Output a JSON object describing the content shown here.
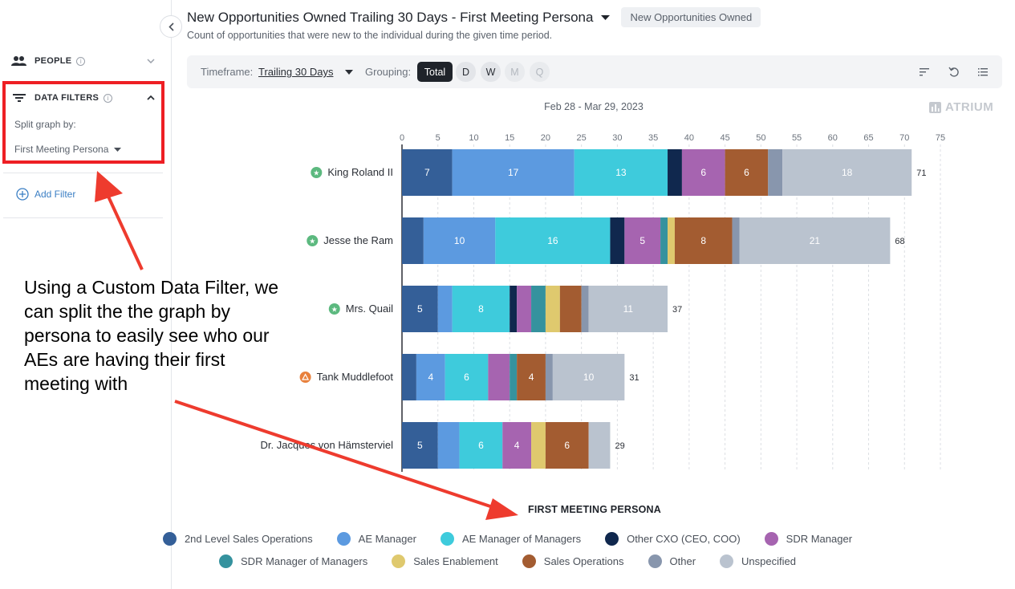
{
  "sidebar": {
    "people_label": "PEOPLE",
    "data_filters_label": "DATA FILTERS",
    "split_label": "Split graph by:",
    "split_value": "First Meeting Persona",
    "add_filter_label": "Add Filter"
  },
  "annotation": {
    "text": "Using a Custom Data Filter, we can split the the graph by persona to easily see who our AEs are having their first meeting with"
  },
  "header": {
    "title": "New Opportunities Owned Trailing 30 Days - First Meeting Persona",
    "badge": "New Opportunities Owned",
    "subtitle": "Count of opportunities that were new to the individual during the given time period."
  },
  "toolbar": {
    "timeframe_label": "Timeframe:",
    "timeframe_value": "Trailing 30 Days",
    "grouping_label": "Grouping:",
    "grouping_options": [
      {
        "label": "Total",
        "state": "selected"
      },
      {
        "label": "D",
        "state": "enabled"
      },
      {
        "label": "W",
        "state": "enabled"
      },
      {
        "label": "M",
        "state": "disabled"
      },
      {
        "label": "Q",
        "state": "disabled"
      }
    ],
    "icons": [
      "sort-icon",
      "reset-icon",
      "list-icon"
    ]
  },
  "brand": "ATRIUM",
  "colors": {
    "accent_dark": "#1f232a",
    "annotation_red": "#ee3b2e",
    "star_green": "#5cb97f",
    "warning_orange": "#e8803c"
  },
  "chart_data": {
    "type": "bar",
    "orientation": "horizontal",
    "stacked": true,
    "date_range": "Feb 28 - Mar 29, 2023",
    "xlim": [
      0,
      75
    ],
    "x_ticks": [
      0,
      5,
      10,
      15,
      20,
      25,
      30,
      35,
      40,
      45,
      50,
      55,
      60,
      65,
      70,
      75
    ],
    "grid": true,
    "legend_title": "FIRST MEETING PERSONA",
    "legend_position": "bottom",
    "categories": [
      {
        "name": "King Roland II",
        "icon": "star-icon",
        "total": 71
      },
      {
        "name": "Jesse the Ram",
        "icon": "star-icon",
        "total": 68
      },
      {
        "name": "Mrs. Quail",
        "icon": "star-icon",
        "total": 37
      },
      {
        "name": "Tank Muddlefoot",
        "icon": "warning-icon",
        "total": 31
      },
      {
        "name": "Dr. Jacques von Hämsterviel",
        "icon": "",
        "total": 29
      }
    ],
    "series": [
      {
        "name": "2nd Level Sales Operations",
        "color": "#345f98",
        "values": [
          7,
          3,
          5,
          2,
          5
        ]
      },
      {
        "name": "AE Manager",
        "color": "#5c9ae0",
        "values": [
          17,
          10,
          2,
          4,
          3
        ]
      },
      {
        "name": "AE Manager of Managers",
        "color": "#3ecbdc",
        "values": [
          13,
          16,
          8,
          6,
          6
        ]
      },
      {
        "name": "Other CXO (CEO, COO)",
        "color": "#10284e",
        "values": [
          2,
          2,
          1,
          0,
          0
        ]
      },
      {
        "name": "SDR Manager",
        "color": "#a664b0",
        "values": [
          6,
          5,
          2,
          3,
          4
        ]
      },
      {
        "name": "SDR Manager of Managers",
        "color": "#35929e",
        "values": [
          0,
          1,
          2,
          1,
          0
        ]
      },
      {
        "name": "Sales Enablement",
        "color": "#dfc96e",
        "values": [
          0,
          1,
          2,
          0,
          2
        ]
      },
      {
        "name": "Sales Operations",
        "color": "#a35c31",
        "values": [
          6,
          8,
          3,
          4,
          6
        ]
      },
      {
        "name": "Other",
        "color": "#8896ad",
        "values": [
          2,
          1,
          1,
          1,
          0
        ]
      },
      {
        "name": "Unspecified",
        "color": "#bac3cf",
        "values": [
          18,
          21,
          11,
          10,
          3
        ]
      }
    ],
    "hidden_value_labels": {
      "comment_free": true,
      "series_labels_shown_at_or_above": 4
    }
  }
}
